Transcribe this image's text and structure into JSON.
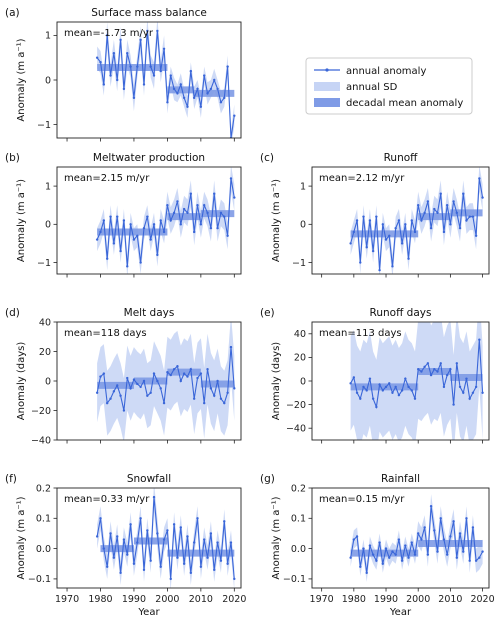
{
  "legend": {
    "annual": "annual anomaly",
    "sd": "annual SD",
    "decadal": "decadal mean anomaly"
  },
  "colors": {
    "line": "#3a66d8",
    "sd": "#c6d4f5",
    "decadal": "#7f9be6",
    "axis": "#222222"
  },
  "x_axis": {
    "label": "Year",
    "range": [
      1967,
      2022
    ],
    "ticks": [
      1970,
      1980,
      1990,
      2000,
      2010,
      2020
    ]
  },
  "chart_data": [
    {
      "type": "line",
      "letter": "(a)",
      "title": "Surface mass balance",
      "mean_text": "mean=-1.73 m/yr",
      "ylabel": "Anomaly (m a⁻¹)",
      "ylim": [
        -1.3,
        1.3
      ],
      "yticks": [
        -1,
        0,
        1
      ],
      "show_xlabels": false,
      "x": [
        1979,
        1980,
        1981,
        1982,
        1983,
        1984,
        1985,
        1986,
        1987,
        1988,
        1989,
        1990,
        1991,
        1992,
        1993,
        1994,
        1995,
        1996,
        1997,
        1998,
        1999,
        2000,
        2001,
        2002,
        2003,
        2004,
        2005,
        2006,
        2007,
        2008,
        2009,
        2010,
        2011,
        2012,
        2013,
        2014,
        2015,
        2016,
        2017,
        2018,
        2019,
        2020
      ],
      "values": [
        0.5,
        0.4,
        -0.1,
        1.0,
        0.1,
        0.6,
        0.0,
        0.9,
        -0.2,
        0.6,
        0.3,
        -0.4,
        0.3,
        0.9,
        -0.1,
        1.1,
        0.3,
        0.1,
        1.1,
        0.2,
        0.7,
        -0.5,
        0.1,
        -0.2,
        -0.3,
        -0.1,
        -0.4,
        -0.6,
        0.2,
        -0.4,
        -0.2,
        -0.6,
        0.1,
        -0.3,
        -0.2,
        0.0,
        -0.2,
        -0.5,
        -0.4,
        0.3,
        -1.3,
        -0.8
      ],
      "sd": [
        0.25,
        0.25,
        0.25,
        0.3,
        0.25,
        0.3,
        0.25,
        0.3,
        0.25,
        0.3,
        0.25,
        0.3,
        0.25,
        0.3,
        0.25,
        0.3,
        0.25,
        0.3,
        0.3,
        0.25,
        0.3,
        0.25,
        0.2,
        0.25,
        0.2,
        0.25,
        0.2,
        0.25,
        0.2,
        0.25,
        0.2,
        0.25,
        0.2,
        0.25,
        0.2,
        0.25,
        0.2,
        0.25,
        0.2,
        0.25,
        0.2,
        0.25
      ],
      "decadal": [
        {
          "start": 1979,
          "end": 2000,
          "value": 0.28
        },
        {
          "start": 2000,
          "end": 2008,
          "value": -0.22
        },
        {
          "start": 2008,
          "end": 2020,
          "value": -0.3
        }
      ]
    },
    {
      "type": "line",
      "letter": "(b)",
      "title": "Meltwater production",
      "mean_text": "mean=2.15 m/yr",
      "ylabel": "Anomaly (m a⁻¹)",
      "ylim": [
        -1.3,
        1.5
      ],
      "yticks": [
        -1,
        0,
        1
      ],
      "show_xlabels": false,
      "x": [
        1979,
        1980,
        1981,
        1982,
        1983,
        1984,
        1985,
        1986,
        1987,
        1988,
        1989,
        1990,
        1991,
        1992,
        1993,
        1994,
        1995,
        1996,
        1997,
        1998,
        1999,
        2000,
        2001,
        2002,
        2003,
        2004,
        2005,
        2006,
        2007,
        2008,
        2009,
        2010,
        2011,
        2012,
        2013,
        2014,
        2015,
        2016,
        2017,
        2018,
        2019,
        2020
      ],
      "values": [
        -0.4,
        -0.2,
        0.1,
        -0.9,
        0.2,
        -0.5,
        0.2,
        -0.7,
        0.1,
        -1.1,
        0.0,
        -0.4,
        -0.3,
        -1.0,
        -0.1,
        0.2,
        -0.4,
        0.0,
        -0.8,
        0.1,
        -0.2,
        0.5,
        0.1,
        0.3,
        0.6,
        0.0,
        0.4,
        0.3,
        0.8,
        -0.2,
        0.5,
        0.0,
        0.5,
        0.3,
        -0.1,
        0.8,
        -0.1,
        0.3,
        0.2,
        -0.3,
        1.2,
        0.7
      ],
      "sd": [
        0.3,
        0.3,
        0.3,
        0.3,
        0.3,
        0.3,
        0.3,
        0.3,
        0.3,
        0.3,
        0.3,
        0.3,
        0.3,
        0.3,
        0.3,
        0.3,
        0.3,
        0.3,
        0.3,
        0.3,
        0.3,
        0.35,
        0.35,
        0.35,
        0.35,
        0.35,
        0.35,
        0.35,
        0.35,
        0.35,
        0.35,
        0.35,
        0.35,
        0.35,
        0.35,
        0.35,
        0.35,
        0.35,
        0.35,
        0.35,
        0.35,
        0.35
      ],
      "decadal": [
        {
          "start": 1979,
          "end": 2000,
          "value": -0.2
        },
        {
          "start": 2000,
          "end": 2010,
          "value": 0.2
        },
        {
          "start": 2010,
          "end": 2020,
          "value": 0.28
        }
      ]
    },
    {
      "type": "line",
      "letter": "(c)",
      "title": "Runoff",
      "mean_text": "mean=2.12 m/yr",
      "ylabel": "Anomaly (m a⁻¹)",
      "ylim": [
        -1.3,
        1.5
      ],
      "yticks": [
        -1,
        0,
        1
      ],
      "show_xlabels": false,
      "x": [
        1979,
        1980,
        1981,
        1982,
        1983,
        1984,
        1985,
        1986,
        1987,
        1988,
        1989,
        1990,
        1991,
        1992,
        1993,
        1994,
        1995,
        1996,
        1997,
        1998,
        1999,
        2000,
        2001,
        2002,
        2003,
        2004,
        2005,
        2006,
        2007,
        2008,
        2009,
        2010,
        2011,
        2012,
        2013,
        2014,
        2015,
        2016,
        2017,
        2018,
        2019,
        2020
      ],
      "values": [
        -0.5,
        -0.2,
        0.1,
        -1.0,
        0.2,
        -0.6,
        0.1,
        -0.7,
        0.2,
        -1.2,
        0.0,
        -0.4,
        -0.3,
        -1.1,
        -0.1,
        0.1,
        -0.5,
        0.0,
        -0.9,
        0.1,
        -0.2,
        0.5,
        0.1,
        0.3,
        0.6,
        -0.1,
        0.4,
        0.3,
        0.8,
        -0.2,
        0.5,
        0.0,
        0.6,
        0.3,
        -0.1,
        0.8,
        0.1,
        0.2,
        0.2,
        -0.3,
        1.2,
        0.7
      ],
      "sd": [
        0.3,
        0.3,
        0.3,
        0.3,
        0.3,
        0.3,
        0.3,
        0.3,
        0.3,
        0.3,
        0.3,
        0.3,
        0.3,
        0.3,
        0.3,
        0.3,
        0.3,
        0.3,
        0.3,
        0.3,
        0.3,
        0.35,
        0.35,
        0.35,
        0.35,
        0.35,
        0.35,
        0.35,
        0.35,
        0.35,
        0.35,
        0.35,
        0.35,
        0.35,
        0.35,
        0.35,
        0.35,
        0.35,
        0.35,
        0.35,
        0.35,
        0.35
      ],
      "decadal": [
        {
          "start": 1979,
          "end": 2000,
          "value": -0.25
        },
        {
          "start": 2000,
          "end": 2010,
          "value": 0.2
        },
        {
          "start": 2010,
          "end": 2020,
          "value": 0.3
        }
      ]
    },
    {
      "type": "line",
      "letter": "(d)",
      "title": "Melt days",
      "mean_text": "mean=118 days",
      "ylabel": "Anomaly (days)",
      "ylim": [
        -40,
        40
      ],
      "yticks": [
        -40,
        -20,
        0,
        20,
        40
      ],
      "show_xlabels": false,
      "x": [
        1979,
        1980,
        1981,
        1982,
        1983,
        1984,
        1985,
        1986,
        1987,
        1988,
        1989,
        1990,
        1991,
        1992,
        1993,
        1994,
        1995,
        1996,
        1997,
        1998,
        1999,
        2000,
        2001,
        2002,
        2003,
        2004,
        2005,
        2006,
        2007,
        2008,
        2009,
        2010,
        2011,
        2012,
        2013,
        2014,
        2015,
        2016,
        2017,
        2018,
        2019,
        2020
      ],
      "values": [
        -8,
        3,
        5,
        -15,
        -12,
        -7,
        -3,
        -10,
        -20,
        2,
        -5,
        1,
        -2,
        -4,
        0,
        -10,
        -8,
        5,
        0,
        -5,
        -15,
        6,
        4,
        8,
        10,
        0,
        5,
        3,
        8,
        -12,
        2,
        5,
        -15,
        8,
        -5,
        -10,
        0,
        -12,
        -15,
        -8,
        23,
        -5
      ],
      "sd": [
        20,
        20,
        20,
        22,
        22,
        22,
        22,
        22,
        22,
        22,
        22,
        22,
        22,
        22,
        22,
        22,
        22,
        22,
        22,
        22,
        22,
        24,
        24,
        24,
        24,
        24,
        24,
        24,
        24,
        24,
        24,
        24,
        24,
        24,
        24,
        24,
        22,
        22,
        22,
        22,
        22,
        22
      ],
      "decadal": [
        {
          "start": 1979,
          "end": 1990,
          "value": -3
        },
        {
          "start": 1990,
          "end": 2000,
          "value": 0
        },
        {
          "start": 2000,
          "end": 2010,
          "value": 6
        },
        {
          "start": 2010,
          "end": 2020,
          "value": -2
        }
      ]
    },
    {
      "type": "line",
      "letter": "(e)",
      "title": "Runoff days",
      "mean_text": "mean=113 days",
      "ylabel": "Anomaly (days)",
      "ylim": [
        -50,
        50
      ],
      "yticks": [
        -40,
        -20,
        0,
        20,
        40
      ],
      "show_xlabels": false,
      "x": [
        1979,
        1980,
        1981,
        1982,
        1983,
        1984,
        1985,
        1986,
        1987,
        1988,
        1989,
        1990,
        1991,
        1992,
        1993,
        1994,
        1995,
        1996,
        1997,
        1998,
        1999,
        2000,
        2001,
        2002,
        2003,
        2004,
        2005,
        2006,
        2007,
        2008,
        2009,
        2010,
        2011,
        2012,
        2013,
        2014,
        2015,
        2016,
        2017,
        2018,
        2019,
        2020
      ],
      "values": [
        -2,
        3,
        -10,
        -15,
        -5,
        -8,
        2,
        -15,
        -22,
        -3,
        -8,
        -5,
        -2,
        -10,
        -5,
        -12,
        -8,
        2,
        -5,
        -8,
        -15,
        10,
        8,
        12,
        15,
        5,
        10,
        8,
        15,
        -5,
        5,
        10,
        -20,
        15,
        -5,
        -10,
        2,
        -15,
        -10,
        -5,
        35,
        -10
      ],
      "sd": [
        40,
        40,
        40,
        40,
        40,
        40,
        40,
        40,
        40,
        40,
        40,
        40,
        40,
        40,
        40,
        40,
        40,
        40,
        40,
        40,
        40,
        42,
        42,
        42,
        42,
        42,
        42,
        42,
        42,
        42,
        42,
        42,
        42,
        42,
        42,
        42,
        40,
        40,
        40,
        40,
        40,
        40
      ],
      "decadal": [
        {
          "start": 1979,
          "end": 2000,
          "value": -5
        },
        {
          "start": 2000,
          "end": 2010,
          "value": 8
        },
        {
          "start": 2010,
          "end": 2020,
          "value": 3
        }
      ]
    },
    {
      "type": "line",
      "letter": "(f)",
      "title": "Snowfall",
      "mean_text": "mean=0.33 m/yr",
      "ylabel": "Anomaly (m a⁻¹)",
      "ylim": [
        -0.13,
        0.2
      ],
      "yticks": [
        -0.1,
        0.0,
        0.1,
        0.2
      ],
      "show_xlabels": true,
      "x": [
        1979,
        1980,
        1981,
        1982,
        1983,
        1984,
        1985,
        1986,
        1987,
        1988,
        1989,
        1990,
        1991,
        1992,
        1993,
        1994,
        1995,
        1996,
        1997,
        1998,
        1999,
        2000,
        2001,
        2002,
        2003,
        2004,
        2005,
        2006,
        2007,
        2008,
        2009,
        2010,
        2011,
        2012,
        2013,
        2014,
        2015,
        2016,
        2017,
        2018,
        2019,
        2020
      ],
      "values": [
        0.04,
        0.1,
        0.0,
        -0.06,
        0.05,
        -0.03,
        0.04,
        -0.08,
        0.03,
        -0.02,
        0.08,
        -0.05,
        0.02,
        0.1,
        -0.07,
        0.06,
        -0.04,
        0.17,
        0.05,
        -0.06,
        0.03,
        0.06,
        -0.1,
        0.08,
        -0.03,
        0.07,
        -0.05,
        0.04,
        -0.08,
        0.02,
        0.1,
        -0.06,
        0.03,
        -0.03,
        0.05,
        -0.07,
        0.02,
        -0.04,
        0.09,
        -0.05,
        0.02,
        -0.1
      ],
      "sd": [
        0.04,
        0.04,
        0.04,
        0.04,
        0.04,
        0.04,
        0.04,
        0.04,
        0.04,
        0.04,
        0.04,
        0.04,
        0.04,
        0.04,
        0.04,
        0.04,
        0.04,
        0.05,
        0.05,
        0.04,
        0.04,
        0.04,
        0.04,
        0.04,
        0.04,
        0.04,
        0.04,
        0.04,
        0.04,
        0.04,
        0.04,
        0.04,
        0.04,
        0.04,
        0.04,
        0.04,
        0.04,
        0.04,
        0.04,
        0.04,
        0.04,
        0.04
      ],
      "decadal": [
        {
          "start": 1980,
          "end": 1990,
          "value": 0.0
        },
        {
          "start": 1990,
          "end": 2000,
          "value": 0.025
        },
        {
          "start": 2000,
          "end": 2020,
          "value": -0.015
        }
      ]
    },
    {
      "type": "line",
      "letter": "(g)",
      "title": "Rainfall",
      "mean_text": "mean=0.15 m/yr",
      "ylabel": "Anomaly (m a⁻¹)",
      "ylim": [
        -0.13,
        0.2
      ],
      "yticks": [
        -0.1,
        0.0,
        0.1,
        0.2
      ],
      "show_xlabels": true,
      "x": [
        1979,
        1980,
        1981,
        1982,
        1983,
        1984,
        1985,
        1986,
        1987,
        1988,
        1989,
        1990,
        1991,
        1992,
        1993,
        1994,
        1995,
        1996,
        1997,
        1998,
        1999,
        2000,
        2001,
        2002,
        2003,
        2004,
        2005,
        2006,
        2007,
        2008,
        2009,
        2010,
        2011,
        2012,
        2013,
        2014,
        2015,
        2016,
        2017,
        2018,
        2019,
        2020
      ],
      "values": [
        -0.03,
        0.03,
        0.04,
        -0.06,
        0.0,
        -0.08,
        0.01,
        -0.02,
        -0.04,
        0.02,
        -0.05,
        0.0,
        -0.03,
        -0.01,
        -0.02,
        0.03,
        -0.04,
        0.01,
        -0.03,
        0.02,
        -0.02,
        0.05,
        0.03,
        0.07,
        -0.02,
        0.14,
        0.06,
        -0.01,
        0.1,
        0.03,
        -0.02,
        0.04,
        0.09,
        -0.03,
        0.05,
        -0.01,
        0.1,
        -0.04,
        0.07,
        -0.04,
        -0.03,
        -0.01
      ],
      "sd": [
        0.03,
        0.03,
        0.03,
        0.03,
        0.03,
        0.03,
        0.03,
        0.03,
        0.03,
        0.03,
        0.03,
        0.03,
        0.03,
        0.03,
        0.03,
        0.03,
        0.03,
        0.03,
        0.03,
        0.03,
        0.03,
        0.04,
        0.04,
        0.04,
        0.04,
        0.04,
        0.04,
        0.04,
        0.04,
        0.04,
        0.04,
        0.04,
        0.04,
        0.04,
        0.04,
        0.04,
        0.04,
        0.04,
        0.04,
        0.04,
        0.04,
        0.04
      ],
      "decadal": [
        {
          "start": 1979,
          "end": 2000,
          "value": -0.015
        },
        {
          "start": 2000,
          "end": 2020,
          "value": 0.017
        }
      ]
    }
  ]
}
